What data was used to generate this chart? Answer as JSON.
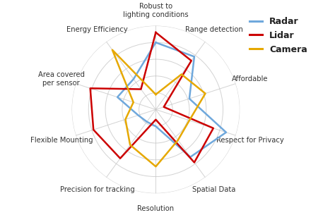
{
  "categories": [
    "Robust to\nlighting conditions",
    "Range detection",
    "Affordable",
    "Respect for Privacy",
    "Spatial Data",
    "Resolution",
    "Precision for tracking",
    "Flexible Mounting",
    "Area covered\nper sensor",
    "Energy Efficiency"
  ],
  "radar": [
    0.8,
    0.78,
    0.42,
    0.88,
    0.7,
    0.2,
    0.18,
    0.22,
    0.48,
    0.45
  ],
  "lidar": [
    0.92,
    0.72,
    0.1,
    0.72,
    0.78,
    0.12,
    0.72,
    0.78,
    0.82,
    0.3
  ],
  "camera": [
    0.18,
    0.52,
    0.62,
    0.42,
    0.45,
    0.68,
    0.52,
    0.38,
    0.28,
    0.88
  ],
  "radar_color": "#6fa8dc",
  "lidar_color": "#cc0000",
  "camera_color": "#e6a800",
  "grid_color": "#c8c8c8",
  "background_color": "#ffffff",
  "legend_labels": [
    "Radar",
    "Lidar",
    "Camera"
  ],
  "label_fontsize": 7.2,
  "legend_fontsize": 9,
  "linewidth": 1.8
}
